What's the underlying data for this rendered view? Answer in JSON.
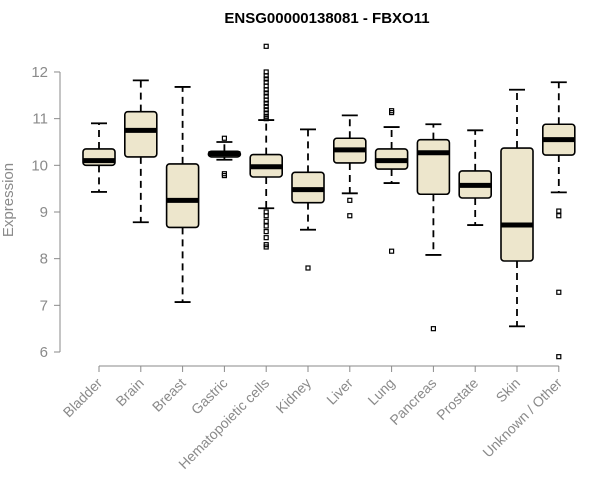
{
  "chart_data": {
    "type": "boxplot",
    "title": "ENSG00000138081 - FBXO11",
    "xlabel": "",
    "ylabel": "Expression",
    "ylim": [
      5.85,
      12.25
    ],
    "yticks": [
      6,
      7,
      8,
      9,
      10,
      11,
      12
    ],
    "categories": [
      "Bladder",
      "Brain",
      "Breast",
      "Gastric",
      "Hematopoietic cells",
      "Kidney",
      "Liver",
      "Lung",
      "Pancreas",
      "Prostate",
      "Skin",
      "Unknown / Other"
    ],
    "boxes": [
      {
        "name": "Bladder",
        "whisker_low": 9.43,
        "q1": 10.0,
        "median": 10.1,
        "q3": 10.35,
        "whisker_high": 10.9,
        "outliers": []
      },
      {
        "name": "Brain",
        "whisker_low": 8.78,
        "q1": 10.18,
        "median": 10.75,
        "q3": 11.15,
        "whisker_high": 11.82,
        "outliers": []
      },
      {
        "name": "Breast",
        "whisker_low": 7.07,
        "q1": 8.67,
        "median": 9.25,
        "q3": 10.03,
        "whisker_high": 11.68,
        "outliers": []
      },
      {
        "name": "Gastric",
        "whisker_low": 10.12,
        "q1": 10.18,
        "median": 10.25,
        "q3": 10.3,
        "whisker_high": 10.5,
        "outliers": [
          10.58,
          9.78,
          9.82
        ]
      },
      {
        "name": "Hematopoietic cells",
        "whisker_low": 9.08,
        "q1": 9.75,
        "median": 9.97,
        "q3": 10.23,
        "whisker_high": 10.97,
        "outliers": [
          12.55,
          12.0,
          11.92,
          11.85,
          11.78,
          11.7,
          11.62,
          11.55,
          11.48,
          11.4,
          11.33,
          11.26,
          11.19,
          11.12,
          11.05,
          11.0,
          9.0,
          8.92,
          8.8,
          8.7,
          8.58,
          8.45,
          8.3,
          8.25
        ]
      },
      {
        "name": "Kidney",
        "whisker_low": 8.62,
        "q1": 9.2,
        "median": 9.48,
        "q3": 9.85,
        "whisker_high": 10.77,
        "outliers": [
          7.8
        ]
      },
      {
        "name": "Liver",
        "whisker_low": 9.4,
        "q1": 10.05,
        "median": 10.33,
        "q3": 10.58,
        "whisker_high": 11.07,
        "outliers": [
          9.25,
          8.92
        ]
      },
      {
        "name": "Lung",
        "whisker_low": 9.62,
        "q1": 9.92,
        "median": 10.1,
        "q3": 10.35,
        "whisker_high": 10.82,
        "outliers": [
          11.17,
          11.13,
          8.16
        ]
      },
      {
        "name": "Pancreas",
        "whisker_low": 8.08,
        "q1": 9.38,
        "median": 10.27,
        "q3": 10.55,
        "whisker_high": 10.88,
        "outliers": [
          6.5
        ]
      },
      {
        "name": "Prostate",
        "whisker_low": 8.72,
        "q1": 9.3,
        "median": 9.57,
        "q3": 9.88,
        "whisker_high": 10.75,
        "outliers": []
      },
      {
        "name": "Skin",
        "whisker_low": 6.55,
        "q1": 7.95,
        "median": 8.72,
        "q3": 10.37,
        "whisker_high": 11.62,
        "outliers": []
      },
      {
        "name": "Unknown / Other",
        "whisker_low": 9.42,
        "q1": 10.22,
        "median": 10.55,
        "q3": 10.88,
        "whisker_high": 11.78,
        "outliers": [
          9.02,
          8.92,
          7.28,
          5.9
        ]
      }
    ]
  }
}
